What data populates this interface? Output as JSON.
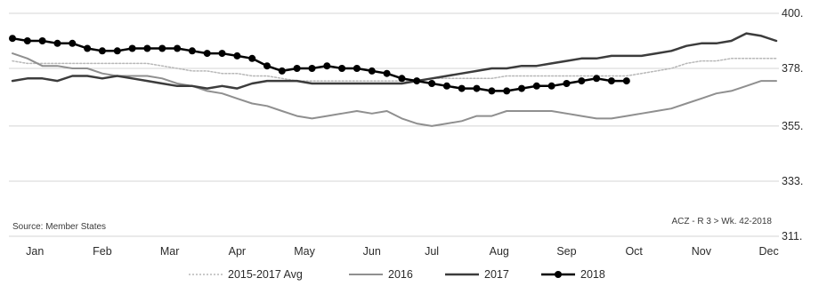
{
  "chart_data": {
    "type": "line",
    "title": "",
    "xlabel": "",
    "ylabel": "",
    "x_range": [
      1,
      52
    ],
    "ylim": [
      311,
      400
    ],
    "y_ticks": [
      "400.",
      "378.",
      "355.",
      "333.",
      "311."
    ],
    "y_tick_values": [
      400,
      378,
      355,
      333,
      311
    ],
    "categories": [
      "Jan",
      "Feb",
      "Mar",
      "Apr",
      "May",
      "Jun",
      "Jul",
      "Aug",
      "Sep",
      "Oct",
      "Nov",
      "Dec"
    ],
    "category_weeks": [
      2.5,
      7,
      11.5,
      16,
      20.5,
      25,
      29,
      33.5,
      38,
      42.5,
      47,
      51.5
    ],
    "grid": true,
    "legend_position": "bottom",
    "source_note": "Source:  Member States",
    "ref_note": "ACZ - R 3     > Wk. 42-2018",
    "colors": {
      "avg": "#b8b8b8",
      "s2016": "#8f8f8f",
      "s2017": "#3c3c3c",
      "s2018": "#000000",
      "grid": "#d4d4d4"
    },
    "series": [
      {
        "name": "2015-2017 Avg",
        "style": "dotted",
        "x": [
          1,
          2,
          3,
          4,
          5,
          6,
          7,
          8,
          9,
          10,
          11,
          12,
          13,
          14,
          15,
          16,
          17,
          18,
          19,
          20,
          21,
          22,
          23,
          24,
          25,
          26,
          27,
          28,
          29,
          30,
          31,
          32,
          33,
          34,
          35,
          36,
          37,
          38,
          39,
          40,
          41,
          42,
          43,
          44,
          45,
          46,
          47,
          48,
          49,
          50,
          51,
          52
        ],
        "y": [
          381,
          380,
          380,
          380,
          380,
          380,
          380,
          380,
          380,
          380,
          379,
          378,
          377,
          377,
          376,
          376,
          375,
          375,
          374,
          373,
          373,
          373,
          373,
          373,
          373,
          373,
          373,
          373,
          374,
          374,
          374,
          374,
          374,
          375,
          375,
          375,
          375,
          375,
          375,
          375,
          375,
          375,
          376,
          377,
          378,
          380,
          381,
          381,
          382,
          382,
          382,
          382
        ]
      },
      {
        "name": "2016",
        "style": "solid",
        "x": [
          1,
          2,
          3,
          4,
          5,
          6,
          7,
          8,
          9,
          10,
          11,
          12,
          13,
          14,
          15,
          16,
          17,
          18,
          19,
          20,
          21,
          22,
          23,
          24,
          25,
          26,
          27,
          28,
          29,
          30,
          31,
          32,
          33,
          34,
          35,
          36,
          37,
          38,
          39,
          40,
          41,
          42,
          43,
          44,
          45,
          46,
          47,
          48,
          49,
          50,
          51,
          52
        ],
        "y": [
          384,
          382,
          379,
          379,
          378,
          378,
          376,
          375,
          375,
          375,
          374,
          372,
          371,
          369,
          368,
          366,
          364,
          363,
          361,
          359,
          358,
          359,
          360,
          361,
          360,
          361,
          358,
          356,
          355,
          356,
          357,
          359,
          359,
          361,
          361,
          361,
          361,
          360,
          359,
          358,
          358,
          359,
          360,
          361,
          362,
          364,
          366,
          368,
          369,
          371,
          373,
          373
        ]
      },
      {
        "name": "2017",
        "style": "solid",
        "x": [
          1,
          2,
          3,
          4,
          5,
          6,
          7,
          8,
          9,
          10,
          11,
          12,
          13,
          14,
          15,
          16,
          17,
          18,
          19,
          20,
          21,
          22,
          23,
          24,
          25,
          26,
          27,
          28,
          29,
          30,
          31,
          32,
          33,
          34,
          35,
          36,
          37,
          38,
          39,
          40,
          41,
          42,
          43,
          44,
          45,
          46,
          47,
          48,
          49,
          50,
          51,
          52
        ],
        "y": [
          373,
          374,
          374,
          373,
          375,
          375,
          374,
          375,
          374,
          373,
          372,
          371,
          371,
          370,
          371,
          370,
          372,
          373,
          373,
          373,
          372,
          372,
          372,
          372,
          372,
          372,
          372,
          373,
          374,
          375,
          376,
          377,
          378,
          378,
          379,
          379,
          380,
          381,
          382,
          382,
          383,
          383,
          383,
          384,
          385,
          387,
          388,
          388,
          389,
          392,
          391,
          389
        ]
      },
      {
        "name": "2018",
        "style": "marker",
        "x": [
          1,
          2,
          3,
          4,
          5,
          6,
          7,
          8,
          9,
          10,
          11,
          12,
          13,
          14,
          15,
          16,
          17,
          18,
          19,
          20,
          21,
          22,
          23,
          24,
          25,
          26,
          27,
          28,
          29,
          30,
          31,
          32,
          33,
          34,
          35,
          36,
          37,
          38,
          39,
          40,
          41,
          42
        ],
        "y": [
          390,
          389,
          389,
          388,
          388,
          386,
          385,
          385,
          386,
          386,
          386,
          386,
          385,
          384,
          384,
          383,
          382,
          379,
          377,
          378,
          378,
          379,
          378,
          378,
          377,
          376,
          374,
          373,
          372,
          371,
          370,
          370,
          369,
          369,
          370,
          371,
          371,
          372,
          373,
          374,
          373,
          373
        ]
      }
    ]
  }
}
